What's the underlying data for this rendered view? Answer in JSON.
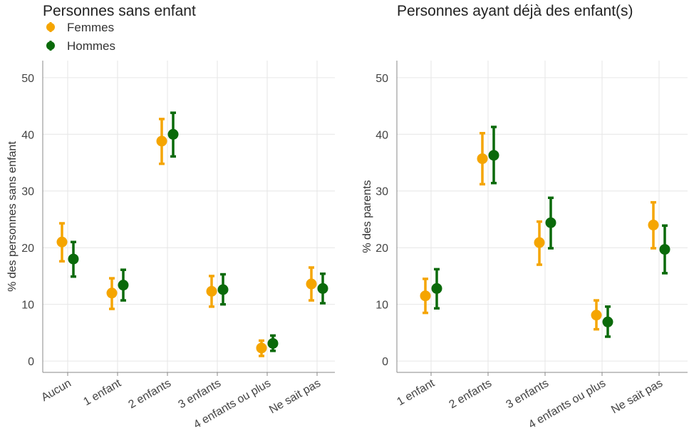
{
  "colors": {
    "femmes": "#f5a500",
    "hommes": "#0a6a0a"
  },
  "legend": [
    {
      "name": "Femmes",
      "color": "#f5a500"
    },
    {
      "name": "Hommes",
      "color": "#0a6a0a"
    }
  ],
  "chart_data": [
    {
      "type": "scatter",
      "title": "Personnes sans enfant",
      "ylabel": "% des personnes sans enfant",
      "xlabel": "",
      "ylim": [
        -2,
        53
      ],
      "yticks": [
        0,
        10,
        20,
        30,
        40,
        50
      ],
      "grid": true,
      "legend_position": "top-left",
      "categories": [
        "Aucun",
        "1 enfant",
        "2 enfants",
        "3 enfants",
        "4 enfants ou plus",
        "Ne sait pas"
      ],
      "series": [
        {
          "name": "Femmes",
          "values": [
            21,
            12,
            38.8,
            12.3,
            2.3,
            13.6
          ],
          "lower": [
            17.6,
            9.2,
            34.8,
            9.6,
            0.9,
            10.7
          ],
          "upper": [
            24.3,
            14.6,
            42.7,
            15,
            3.6,
            16.5
          ]
        },
        {
          "name": "Hommes",
          "values": [
            18,
            13.4,
            40,
            12.6,
            3.1,
            12.8
          ],
          "lower": [
            14.9,
            10.7,
            36.1,
            10,
            1.8,
            10.2
          ],
          "upper": [
            21,
            16.1,
            43.8,
            15.3,
            4.5,
            15.4
          ]
        }
      ]
    },
    {
      "type": "scatter",
      "title": "Personnes ayant déjà des enfant(s)",
      "ylabel": "% des parents",
      "xlabel": "",
      "ylim": [
        -2,
        53
      ],
      "yticks": [
        0,
        10,
        20,
        30,
        40,
        50
      ],
      "grid": true,
      "categories": [
        "1 enfant",
        "2 enfants",
        "3 enfants",
        "4 enfants ou plus",
        "Ne sait pas"
      ],
      "series": [
        {
          "name": "Femmes",
          "values": [
            11.5,
            35.7,
            20.9,
            8.1,
            24
          ],
          "lower": [
            8.5,
            31.2,
            17,
            5.6,
            19.9
          ],
          "upper": [
            14.5,
            40.2,
            24.6,
            10.7,
            28
          ]
        },
        {
          "name": "Hommes",
          "values": [
            12.8,
            36.3,
            24.4,
            6.9,
            19.7
          ],
          "lower": [
            9.3,
            31.4,
            19.9,
            4.3,
            15.5
          ],
          "upper": [
            16.2,
            41.3,
            28.8,
            9.6,
            23.9
          ]
        }
      ]
    }
  ]
}
